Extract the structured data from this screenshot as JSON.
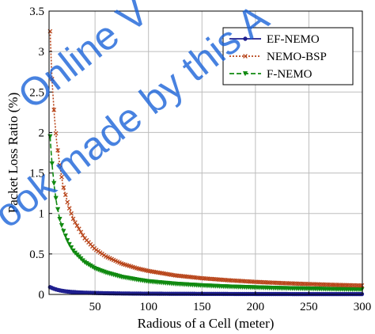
{
  "chart_data": {
    "type": "line",
    "title": "",
    "xlabel": "Radious of a Cell (meter)",
    "ylabel": "Packet Loss Ratio (%)",
    "xlim": [
      7,
      300
    ],
    "ylim": [
      0,
      3.5
    ],
    "xticks": [
      50,
      100,
      150,
      200,
      250,
      300
    ],
    "yticks": [
      0,
      0.5,
      1,
      1.5,
      2,
      2.5,
      3,
      3.5
    ],
    "xtick_labels": [
      "50",
      "100",
      "150",
      "200",
      "250",
      "300"
    ],
    "ytick_labels": [
      "0",
      "0.5",
      "1",
      "1.5",
      "2",
      "2.5",
      "3",
      "3.5"
    ],
    "grid": true,
    "legend_position": "top-right",
    "x": [
      8,
      9,
      10,
      12,
      14,
      17,
      20,
      25,
      30,
      40,
      50,
      60,
      75,
      90,
      100,
      125,
      150,
      175,
      200,
      225,
      250,
      275,
      300
    ],
    "series": [
      {
        "name": "EF-NEMO",
        "color": "#1f1f8f",
        "marker": "circle",
        "dash": "solid",
        "values": [
          0.09,
          0.085,
          0.078,
          0.068,
          0.06,
          0.05,
          0.043,
          0.034,
          0.029,
          0.022,
          0.018,
          0.015,
          0.012,
          0.01,
          0.009,
          0.008,
          0.007,
          0.006,
          0.005,
          0.005,
          0.004,
          0.004,
          0.004
        ]
      },
      {
        "name": "NEMO-BSP",
        "color": "#b8451a",
        "marker": "x",
        "dash": "dotted",
        "values": [
          3.25,
          2.9,
          2.6,
          2.2,
          1.9,
          1.6,
          1.35,
          1.1,
          0.92,
          0.7,
          0.56,
          0.47,
          0.38,
          0.32,
          0.29,
          0.235,
          0.2,
          0.175,
          0.155,
          0.14,
          0.128,
          0.118,
          0.11
        ]
      },
      {
        "name": "F-NEMO",
        "color": "#118a11",
        "marker": "triangle",
        "dash": "dashed",
        "values": [
          1.95,
          1.75,
          1.58,
          1.32,
          1.13,
          0.93,
          0.8,
          0.64,
          0.53,
          0.4,
          0.32,
          0.27,
          0.215,
          0.18,
          0.16,
          0.13,
          0.11,
          0.095,
          0.085,
          0.076,
          0.07,
          0.064,
          0.06
        ]
      }
    ]
  },
  "watermark": {
    "lines": [
      "Online V",
      "ook made by this A"
    ],
    "color": "#1560d8"
  }
}
